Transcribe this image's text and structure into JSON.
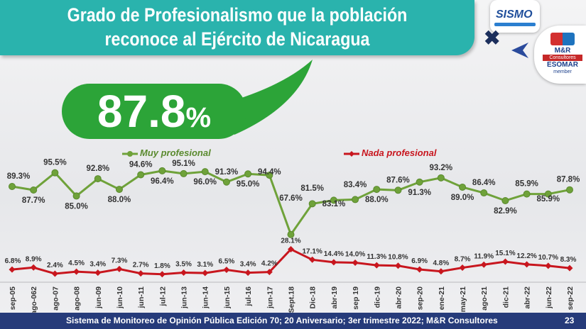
{
  "header": {
    "title_line1": "Grado de Profesionalismo que la población",
    "title_line2": "reconoce al Ejército de Nicaragua"
  },
  "logos": {
    "sismo": "SISMO",
    "mr_name": "M&R",
    "mr_consultores": "Consultores",
    "esomar": "ESOMAR",
    "member": "member"
  },
  "highlight": {
    "value": "87.8",
    "unit": "%"
  },
  "legend": {
    "muy": "Muy profesional",
    "nada": "Nada profesional"
  },
  "colors": {
    "green": "#6fa23a",
    "red": "#c8161e",
    "teal": "#2ab3ad",
    "navy": "#263b7a",
    "highlight_green": "#2ca438"
  },
  "chart_data": {
    "type": "line",
    "categories": [
      "sep-05",
      "ago-062",
      "ago-07",
      "ago-08",
      "jun-09",
      "jun-10",
      "jun-11",
      "jul-12",
      "jun-13",
      "jun-14",
      "jun-15",
      "jul-16",
      "jun-17",
      "Sept.18",
      "Dic-18",
      "abr-19",
      "sep 19",
      "dic-19",
      "abr-20",
      "sep-20",
      "ene-21",
      "may-21",
      "ago-21",
      "dic-21",
      "abr-22",
      "jun-22",
      "sep-22"
    ],
    "series": [
      {
        "name": "Muy profesional",
        "values": [
          89.3,
          87.7,
          95.5,
          85.0,
          92.8,
          88.0,
          94.6,
          96.4,
          95.1,
          96.0,
          91.3,
          95.0,
          94.4,
          67.6,
          81.5,
          83.1,
          83.4,
          88.0,
          87.6,
          91.3,
          93.2,
          89.0,
          86.4,
          82.9,
          85.9,
          85.9,
          87.8
        ],
        "labels": [
          "89.3%",
          "87.7%",
          "95.5%",
          "85.0%",
          "92.8%",
          "88.0%",
          "94.6%",
          "96.4%",
          "95.1%",
          "96.0%",
          "91.3%",
          "95.0%",
          "94.4%",
          "67.6%",
          "81.5%",
          "83.1%",
          "83.4%",
          "88.0%",
          "87.6%",
          "91.3%",
          "93.2%",
          "89.0%",
          "86.4%",
          "82.9%",
          "85.9%",
          "85.9%",
          "87.8%"
        ]
      },
      {
        "name": "Nada profesional",
        "values": [
          6.8,
          8.9,
          2.4,
          4.5,
          3.4,
          7.3,
          2.7,
          1.8,
          3.5,
          3.1,
          6.5,
          3.4,
          4.2,
          28.1,
          17.1,
          14.4,
          14.0,
          11.3,
          10.8,
          6.9,
          4.8,
          8.7,
          11.9,
          15.1,
          12.2,
          10.7,
          8.3
        ],
        "labels": [
          "6.8%",
          "8.9%",
          "2.4%",
          "4.5%",
          "3.4%",
          "7.3%",
          "2.7%",
          "1.8%",
          "3.5%",
          "3.1%",
          "6.5%",
          "3.4%",
          "4.2%",
          "28.1%",
          "17.1%",
          "14.4%",
          "14.0%",
          "11.3%",
          "10.8%",
          "6.9%",
          "4.8%",
          "8.7%",
          "11.9%",
          "15.1%",
          "12.2%",
          "10.7%",
          "8.3%"
        ]
      }
    ],
    "legend_position": "top",
    "grid": false
  },
  "footer": {
    "text": "Sistema de Monitoreo de Opinión Pública Edición 70; 20 Aniversario; 3er trimestre 2022; M&R Consultores",
    "page": "23"
  }
}
